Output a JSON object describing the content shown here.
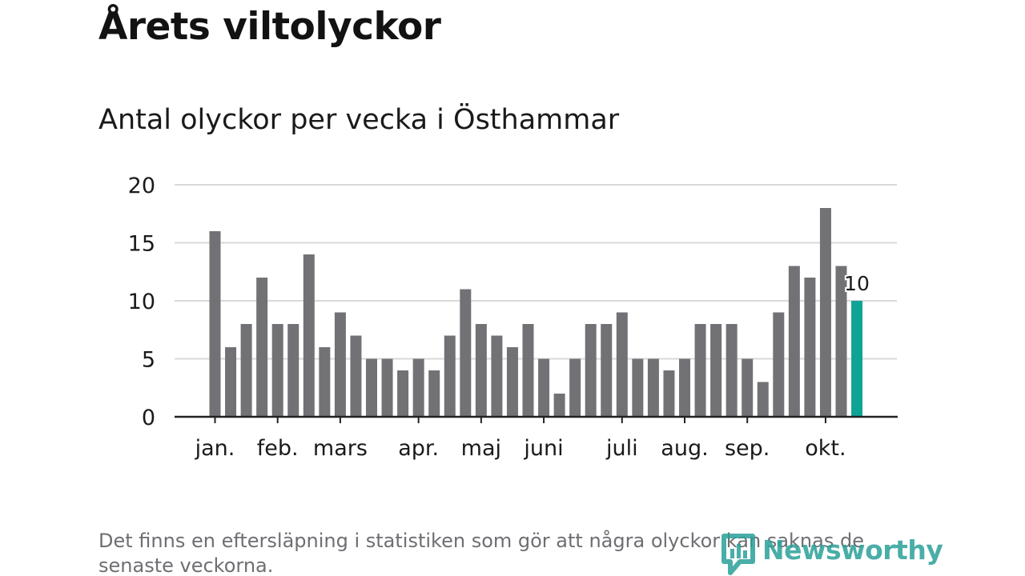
{
  "title": "Årets viltolyckor",
  "subtitle": "Antal olyckor per vecka i Östhammar",
  "footnote": "Det finns en eftersläpning i statistiken som gör att några olyckor kan saknas de senaste veckorna.",
  "brand": {
    "name": "Newsworthy",
    "color": "#2aa198",
    "icon": "bar-chart-speech-bubble-icon"
  },
  "colors": {
    "bar": "#727176",
    "highlight": "#0fa396",
    "grid": "#d9d9d9",
    "axis": "#222222"
  },
  "chart_data": {
    "type": "bar",
    "title": "Antal olyckor per vecka i Östhammar",
    "xlabel": "",
    "ylabel": "",
    "ylim": [
      0,
      20
    ],
    "yticks": [
      0,
      5,
      10,
      15,
      20
    ],
    "grid": true,
    "values": [
      16,
      6,
      8,
      12,
      8,
      8,
      14,
      6,
      9,
      7,
      5,
      5,
      4,
      5,
      4,
      7,
      11,
      8,
      7,
      6,
      8,
      5,
      2,
      5,
      8,
      8,
      9,
      5,
      5,
      4,
      5,
      8,
      8,
      8,
      5,
      3,
      9,
      13,
      12,
      18,
      13,
      10
    ],
    "highlight_index": 41,
    "highlight_label": "10",
    "month_labels": [
      {
        "label": "jan.",
        "bar_index": 0
      },
      {
        "label": "feb.",
        "bar_index": 4
      },
      {
        "label": "mars",
        "bar_index": 8
      },
      {
        "label": "apr.",
        "bar_index": 13
      },
      {
        "label": "maj",
        "bar_index": 17
      },
      {
        "label": "juni",
        "bar_index": 21
      },
      {
        "label": "juli",
        "bar_index": 26
      },
      {
        "label": "aug.",
        "bar_index": 30
      },
      {
        "label": "sep.",
        "bar_index": 34
      },
      {
        "label": "okt.",
        "bar_index": 39
      }
    ]
  }
}
